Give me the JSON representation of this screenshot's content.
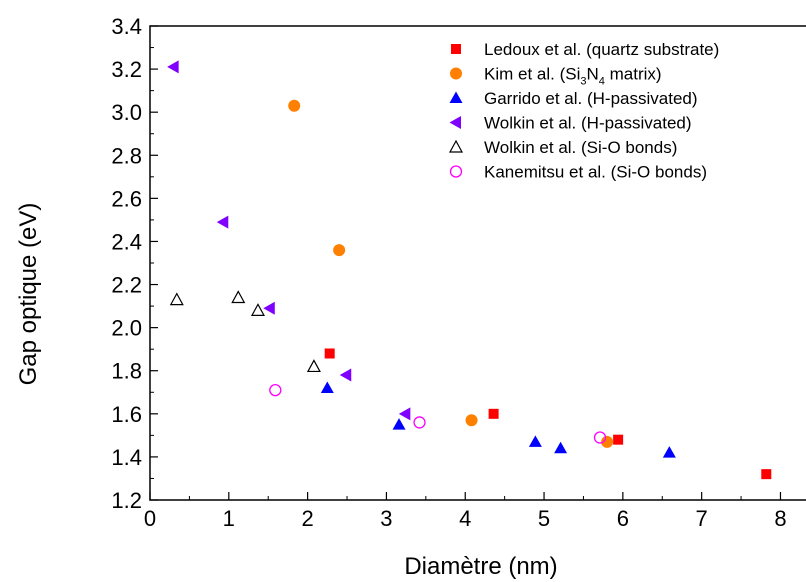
{
  "chart_data": {
    "type": "scatter",
    "xlabel": "Diamètre (nm)",
    "ylabel": "Gap optique (eV)",
    "xlim": [
      0,
      8.4
    ],
    "ylim": [
      1.2,
      3.4
    ],
    "xticks": [
      0,
      1,
      2,
      3,
      4,
      5,
      6,
      7,
      8
    ],
    "yticks": [
      1.2,
      1.4,
      1.6,
      1.8,
      2.0,
      2.2,
      2.4,
      2.6,
      2.8,
      3.0,
      3.2,
      3.4
    ],
    "ytick_labels": [
      "1.2",
      "1.4",
      "1.6",
      "1.8",
      "2.0",
      "2.2",
      "2.4",
      "2.6",
      "2.8",
      "3.0",
      "3.2",
      "3.4"
    ],
    "grid": false,
    "legend_position": "top-right",
    "series": [
      {
        "name": "Ledoux et al. (quartz substrate)",
        "marker": "square-filled",
        "color": "#ff0000",
        "points": [
          [
            2.28,
            1.88
          ],
          [
            4.36,
            1.6
          ],
          [
            5.94,
            1.48
          ],
          [
            7.82,
            1.32
          ]
        ]
      },
      {
        "name": "Kim et al. (Si3N4 matrix)",
        "marker": "circle-filled",
        "color": "#ff8000",
        "points": [
          [
            1.83,
            3.03
          ],
          [
            2.4,
            2.36
          ],
          [
            4.08,
            1.57
          ],
          [
            5.8,
            1.47
          ]
        ]
      },
      {
        "name": "Garrido et al. (H-passivated)",
        "marker": "triangle-up-filled",
        "color": "#0000ff",
        "points": [
          [
            2.25,
            1.72
          ],
          [
            3.16,
            1.55
          ],
          [
            4.89,
            1.47
          ],
          [
            5.21,
            1.44
          ],
          [
            6.59,
            1.42
          ]
        ]
      },
      {
        "name": "Wolkin et al. (H-passivated)",
        "marker": "triangle-left-filled",
        "color": "#8000ff",
        "points": [
          [
            0.3,
            3.21
          ],
          [
            0.93,
            2.49
          ],
          [
            1.52,
            2.09
          ],
          [
            2.49,
            1.78
          ],
          [
            3.24,
            1.6
          ]
        ]
      },
      {
        "name": "Wolkin et al. (Si-O bonds)",
        "marker": "triangle-up-open",
        "color": "#000000",
        "points": [
          [
            0.34,
            2.13
          ],
          [
            1.12,
            2.14
          ],
          [
            1.37,
            2.08
          ],
          [
            2.08,
            1.82
          ]
        ]
      },
      {
        "name": "Kanemitsu et al. (Si-O bonds)",
        "marker": "circle-open",
        "color": "#ff00ff",
        "points": [
          [
            1.59,
            1.71
          ],
          [
            3.42,
            1.56
          ],
          [
            5.71,
            1.49
          ]
        ]
      }
    ],
    "legend": [
      {
        "pre": "Ledoux et al. (quartz substrate)"
      },
      {
        "pre": "Kim et al. (Si",
        "sub1": "3",
        "mid": "N",
        "sub2": "4",
        "post": " matrix)"
      },
      {
        "pre": "Garrido et al. (H-passivated)"
      },
      {
        "pre": "Wolkin et al. (H-passivated)"
      },
      {
        "pre": "Wolkin et al. (Si-O bonds)"
      },
      {
        "pre": "Kanemitsu et al. (Si-O bonds)"
      }
    ]
  }
}
